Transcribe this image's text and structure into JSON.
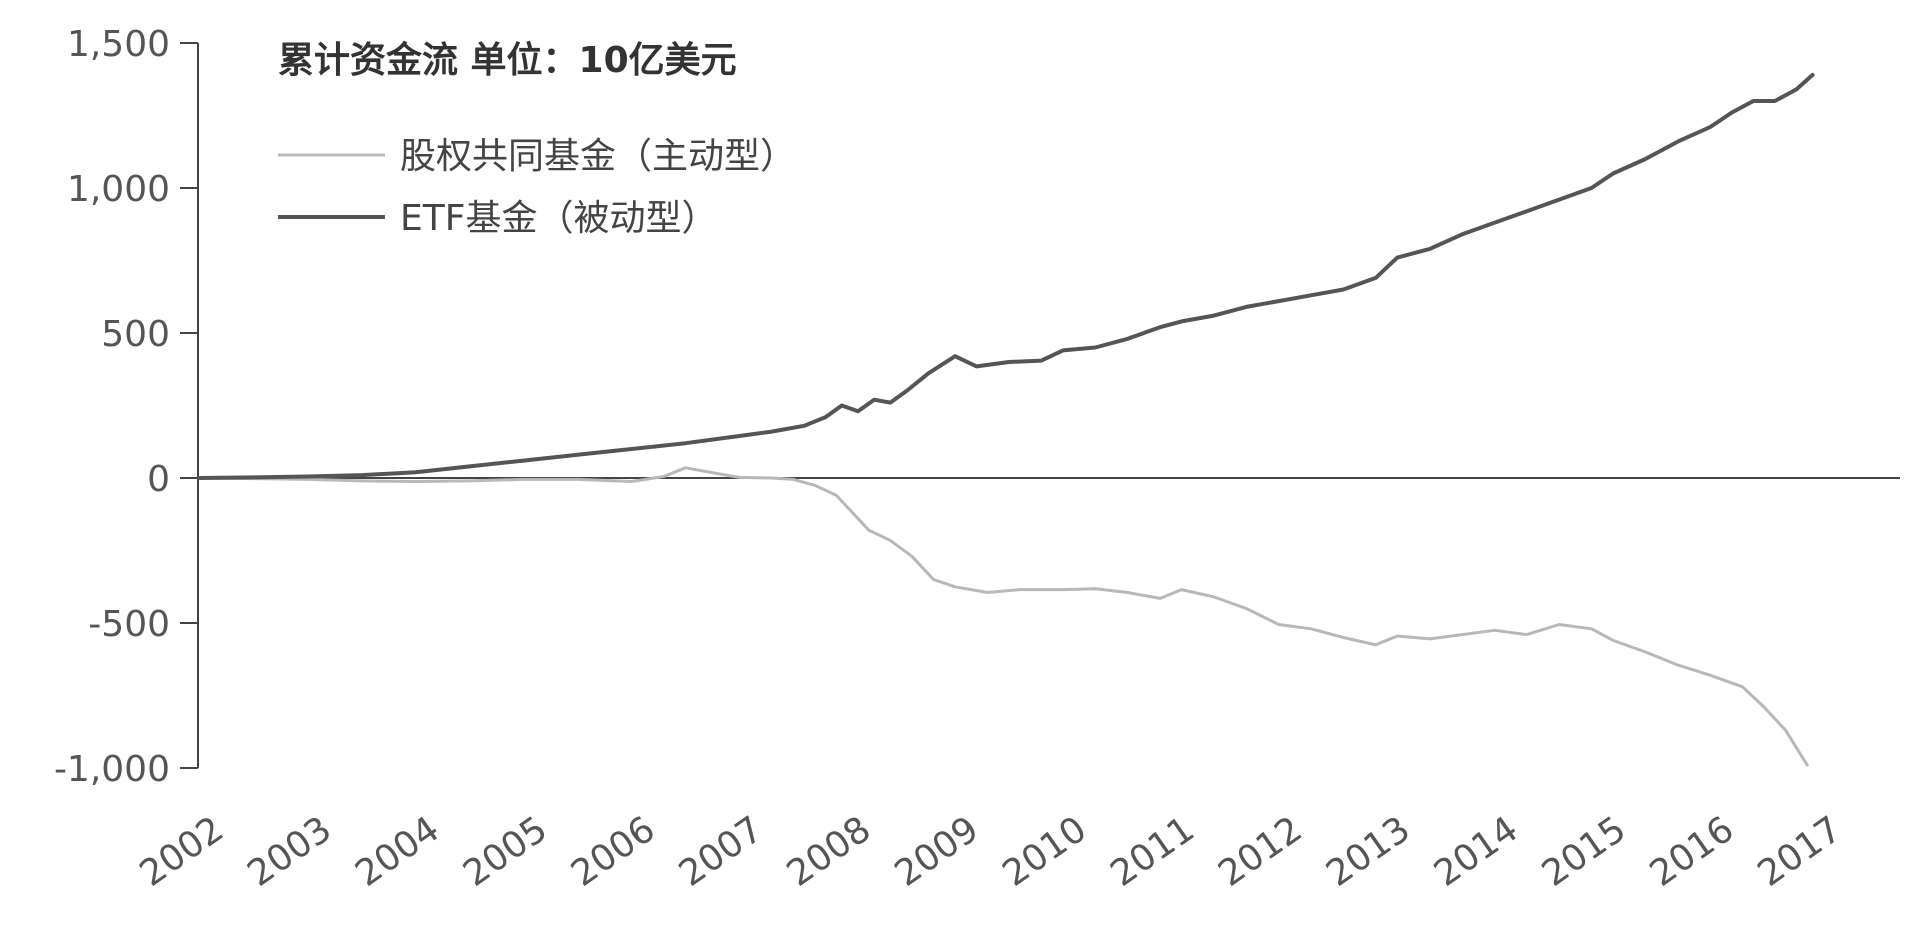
{
  "chart_data": {
    "type": "line",
    "title": "累计资金流  单位：10亿美元",
    "xlabel": "",
    "ylabel": "",
    "xlim": [
      2002,
      2017
    ],
    "ylim": [
      -1000,
      1500
    ],
    "y_ticks": [
      1500,
      1000,
      500,
      0,
      -500,
      -1000
    ],
    "y_tick_labels": [
      "1,500",
      "1,000",
      "500",
      "0",
      "-500",
      "-1,000"
    ],
    "x_tick_labels": [
      "2002",
      "2003",
      "2004",
      "2005",
      "2006",
      "2007",
      "2008",
      "2009",
      "2010",
      "2011",
      "2012",
      "2013",
      "2014",
      "2015",
      "2016",
      "2017"
    ],
    "legend_position": "top-left",
    "grid": false,
    "series": [
      {
        "name": "股权共同基金（主动型）",
        "color": "#b8b8b8",
        "x": [
          2002.0,
          2002.5,
          2003.0,
          2003.5,
          2004.0,
          2004.5,
          2005.0,
          2005.5,
          2006.0,
          2006.3,
          2006.5,
          2006.8,
          2007.0,
          2007.3,
          2007.5,
          2007.7,
          2007.9,
          2008.0,
          2008.2,
          2008.4,
          2008.6,
          2008.8,
          2009.0,
          2009.3,
          2009.6,
          2010.0,
          2010.3,
          2010.6,
          2010.9,
          2011.1,
          2011.4,
          2011.7,
          2012.0,
          2012.3,
          2012.6,
          2012.9,
          2013.1,
          2013.4,
          2013.7,
          2014.0,
          2014.3,
          2014.6,
          2014.9,
          2015.1,
          2015.4,
          2015.7,
          2016.0,
          2016.3,
          2016.5,
          2016.7,
          2016.9
        ],
        "y": [
          0,
          -2,
          -5,
          -10,
          -12,
          -10,
          -5,
          -5,
          -12,
          5,
          35,
          15,
          2,
          0,
          -5,
          -25,
          -60,
          -100,
          -180,
          -215,
          -270,
          -350,
          -375,
          -395,
          -385,
          -385,
          -382,
          -395,
          -415,
          -385,
          -410,
          -450,
          -505,
          -520,
          -550,
          -575,
          -545,
          -555,
          -540,
          -525,
          -540,
          -505,
          -520,
          -560,
          -600,
          -645,
          -680,
          -720,
          -790,
          -870,
          -990
        ]
      },
      {
        "name": "ETF基金（被动型）",
        "color": "#555555",
        "x": [
          2002.0,
          2002.5,
          2003.0,
          2003.5,
          2004.0,
          2004.5,
          2005.0,
          2005.5,
          2006.0,
          2006.5,
          2007.0,
          2007.3,
          2007.6,
          2007.8,
          2007.95,
          2008.1,
          2008.25,
          2008.4,
          2008.55,
          2008.75,
          2009.0,
          2009.2,
          2009.5,
          2009.8,
          2010.0,
          2010.3,
          2010.6,
          2010.9,
          2011.1,
          2011.4,
          2011.7,
          2012.0,
          2012.3,
          2012.6,
          2012.9,
          2013.1,
          2013.4,
          2013.7,
          2014.0,
          2014.3,
          2014.6,
          2014.9,
          2015.1,
          2015.4,
          2015.7,
          2016.0,
          2016.2,
          2016.4,
          2016.6,
          2016.8,
          2016.95
        ],
        "y": [
          0,
          2,
          5,
          10,
          20,
          40,
          60,
          80,
          100,
          120,
          145,
          160,
          180,
          210,
          250,
          230,
          270,
          260,
          300,
          360,
          420,
          385,
          400,
          405,
          440,
          450,
          480,
          520,
          540,
          560,
          590,
          610,
          630,
          650,
          690,
          760,
          790,
          840,
          880,
          920,
          960,
          1000,
          1050,
          1100,
          1160,
          1210,
          1260,
          1300,
          1300,
          1340,
          1390
        ]
      }
    ]
  }
}
